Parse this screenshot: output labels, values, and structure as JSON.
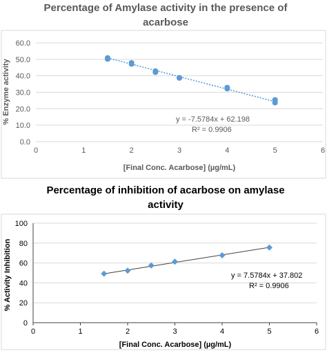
{
  "chart_data": [
    {
      "type": "scatter",
      "title_lines": [
        "Percentage of Amylase activity in the presence of",
        "acarbose"
      ],
      "xlabel": "[Final Conc. Acarbose] (µg/mL)",
      "ylabel": "% Enzyme activity",
      "xlim": [
        0,
        6
      ],
      "ylim": [
        0,
        60
      ],
      "x_ticks": [
        "0",
        "1",
        "2",
        "3",
        "4",
        "5",
        "6"
      ],
      "y_ticks": [
        "0.0",
        "10.0",
        "20.0",
        "30.0",
        "40.0",
        "50.0",
        "60.0"
      ],
      "series": [
        {
          "x": [
            1.5,
            1.5,
            2.0,
            2.0,
            2.5,
            2.5,
            3.0,
            3.0,
            4.0,
            4.0,
            5.0,
            5.0,
            5.0
          ],
          "y": [
            51.0,
            50.0,
            48.0,
            47.0,
            43.0,
            42.0,
            39.0,
            38.5,
            33.0,
            32.0,
            25.5,
            24.5,
            23.5
          ]
        }
      ],
      "trendline": {
        "slope": -7.5784,
        "intercept": 62.198,
        "x_range": [
          1.5,
          5.0
        ],
        "style": "dotted"
      },
      "equation": "y = -7.5784x + 62.198",
      "r_squared": "R² = 0.9906",
      "grid": true,
      "legend": "none",
      "colors": {
        "points": "#5b9bd5",
        "trend": "#5b9bd5",
        "grid": "#d9d9d9",
        "text": "#595959"
      }
    },
    {
      "type": "scatter",
      "title_lines": [
        "Percentage of inhibition of acarbose on amylase",
        "activity"
      ],
      "xlabel": "[Final Conc. Acarbose] (µg/mL)",
      "ylabel": "% Activity Inhibition",
      "xlim": [
        0,
        6
      ],
      "ylim": [
        0,
        100
      ],
      "x_ticks": [
        "0",
        "1",
        "2",
        "3",
        "4",
        "5",
        "6"
      ],
      "y_ticks": [
        "0",
        "20",
        "40",
        "60",
        "80",
        "100"
      ],
      "series": [
        {
          "x": [
            1.5,
            2.0,
            2.5,
            3.0,
            4.0,
            5.0
          ],
          "y": [
            49.2,
            52.3,
            57.5,
            61.3,
            67.7,
            75.5
          ],
          "error": [
            1.5,
            1.5,
            1.5,
            1.5,
            1.5,
            2.5
          ]
        }
      ],
      "trendline": {
        "slope": 7.5784,
        "intercept": 37.802,
        "x_range": [
          1.5,
          5.0
        ],
        "style": "solid"
      },
      "equation": "y = 7.5784x + 37.802",
      "r_squared": "R² = 0.9906",
      "grid": true,
      "legend": "none",
      "colors": {
        "points": "#5b9bd5",
        "trend": "#404040",
        "grid": "#d9d9d9",
        "text": "#000000"
      }
    }
  ]
}
